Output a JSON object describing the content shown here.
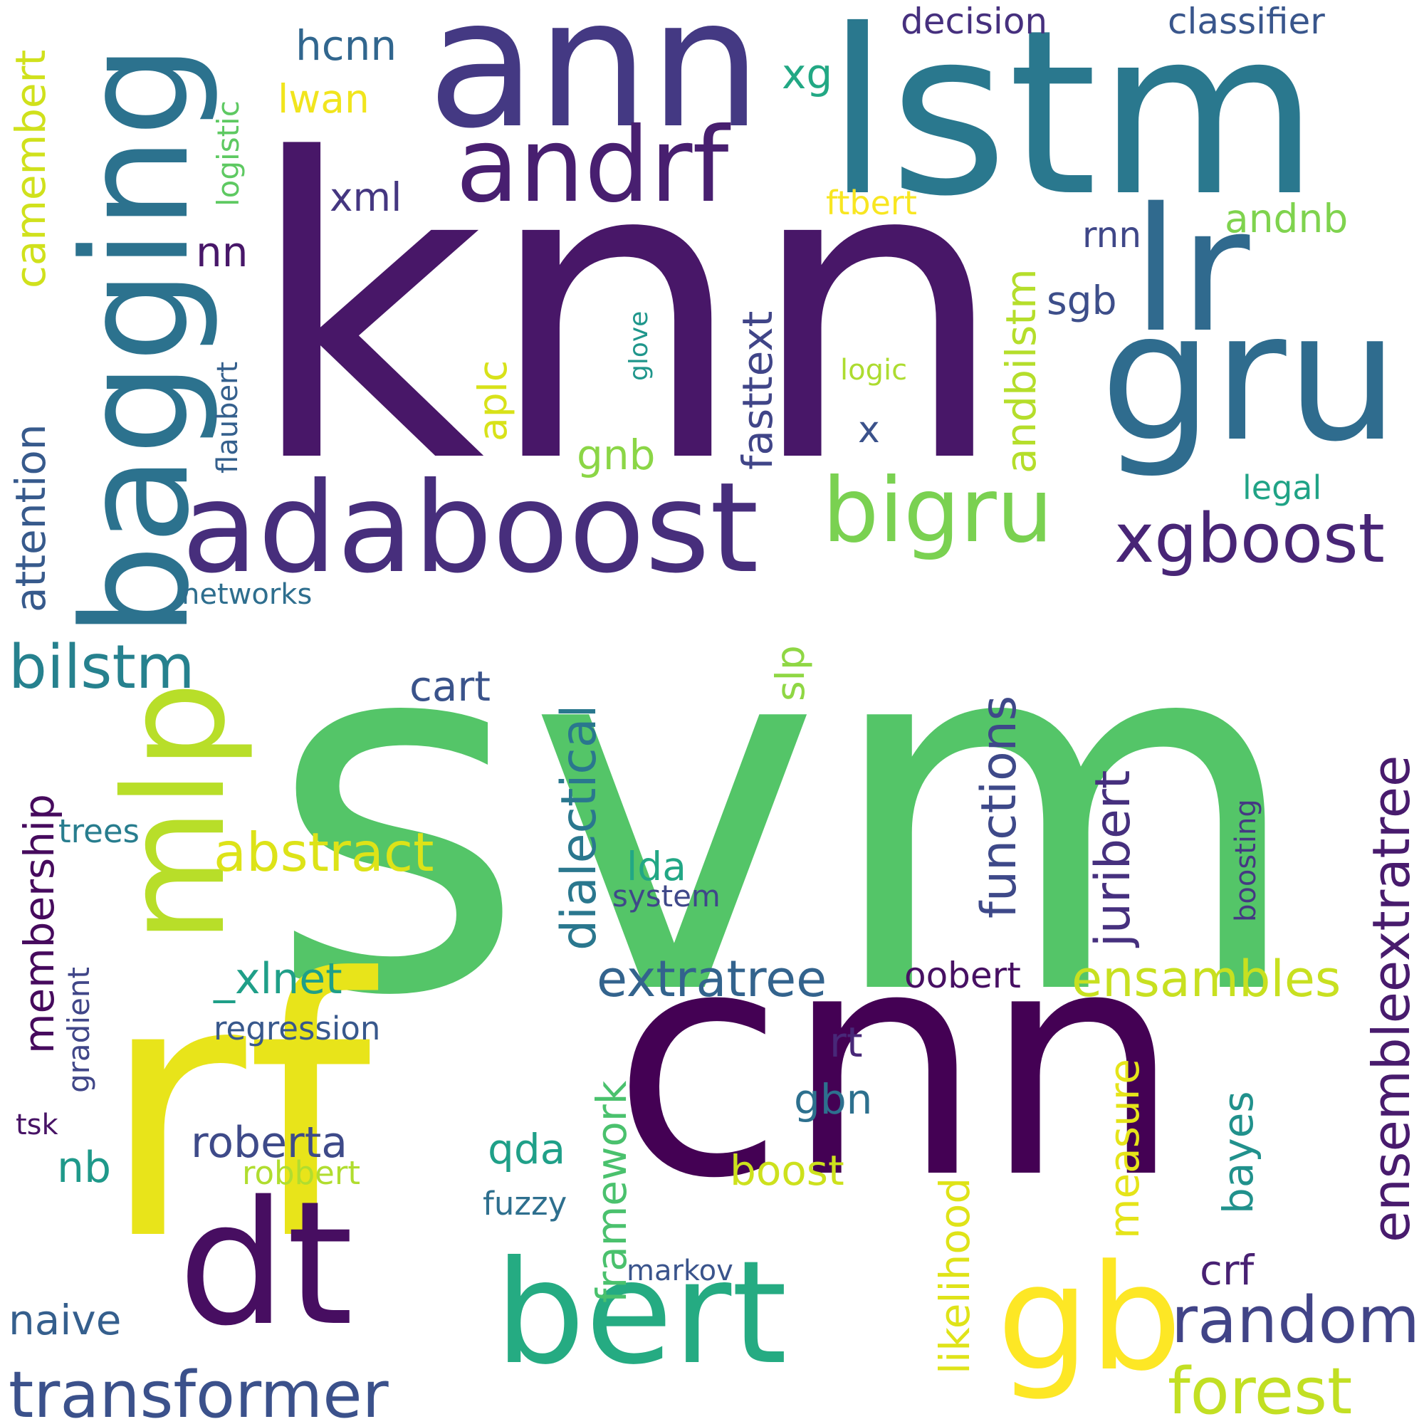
{
  "word_cloud": {
    "background": "#ffffff",
    "palette": "viridis",
    "words": [
      {
        "text": "svm",
        "color": "#54c568"
      },
      {
        "text": "knn",
        "color": "#481768"
      },
      {
        "text": "lstm",
        "color": "#2a788e"
      },
      {
        "text": "rf",
        "color": "#e8e41a"
      },
      {
        "text": "cnn",
        "color": "#440154"
      },
      {
        "text": "ann",
        "color": "#443983"
      },
      {
        "text": "bagging",
        "color": "#2c728e"
      },
      {
        "text": "lr",
        "color": "#306a8e"
      },
      {
        "text": "gru",
        "color": "#2f6c8e"
      },
      {
        "text": "mlp",
        "color": "#b8de29"
      },
      {
        "text": "adaboost",
        "color": "#472e7c"
      },
      {
        "text": "andrf",
        "color": "#481f70"
      },
      {
        "text": "dt",
        "color": "#470e61"
      },
      {
        "text": "bert",
        "color": "#25ab82"
      },
      {
        "text": "gb",
        "color": "#fde725"
      },
      {
        "text": "bigru",
        "color": "#7ad151"
      },
      {
        "text": "xgboost",
        "color": "#482576"
      },
      {
        "text": "transformer",
        "color": "#3b518b"
      },
      {
        "text": "forest",
        "color": "#c2df23"
      },
      {
        "text": "random",
        "color": "#414487"
      },
      {
        "text": "bilstm",
        "color": "#26818e"
      },
      {
        "text": "abstract",
        "color": "#dde318"
      },
      {
        "text": "ensambles",
        "color": "#c8e020"
      },
      {
        "text": "extratree",
        "color": "#33638d"
      },
      {
        "text": "ensembleextratree",
        "color": "#481b6d"
      },
      {
        "text": "dialectical",
        "color": "#2a778e"
      },
      {
        "text": "functions",
        "color": "#3e4989"
      },
      {
        "text": "juribert",
        "color": "#46307e"
      },
      {
        "text": "camembert",
        "color": "#d0e11c"
      },
      {
        "text": "attention",
        "color": "#375a8c"
      },
      {
        "text": "membership",
        "color": "#460a5d"
      },
      {
        "text": "fasttext",
        "color": "#404588"
      },
      {
        "text": "andbilstm",
        "color": "#b5de2b"
      },
      {
        "text": "naive",
        "color": "#355f8d"
      },
      {
        "text": "roberta",
        "color": "#3e4a89"
      },
      {
        "text": "_xlnet",
        "color": "#1f9f88"
      },
      {
        "text": "cart",
        "color": "#3a538b"
      },
      {
        "text": "boost",
        "color": "#cde11d"
      },
      {
        "text": "likelihood",
        "color": "#dfe318"
      },
      {
        "text": "framework",
        "color": "#4ac16d"
      },
      {
        "text": "measure",
        "color": "#e5e419"
      },
      {
        "text": "bayes",
        "color": "#21918c"
      },
      {
        "text": "crf",
        "color": "#482173"
      },
      {
        "text": "gbn",
        "color": "#2d708e"
      },
      {
        "text": "rt",
        "color": "#482878"
      },
      {
        "text": "qda",
        "color": "#1fa088"
      },
      {
        "text": "lda",
        "color": "#22a785"
      },
      {
        "text": "slp",
        "color": "#8fd744"
      },
      {
        "text": "gnb",
        "color": "#8bd646"
      },
      {
        "text": "aplc",
        "color": "#d8e219"
      },
      {
        "text": "andnb",
        "color": "#7fd34e"
      },
      {
        "text": "sgb",
        "color": "#3d4e8a"
      },
      {
        "text": "rnn",
        "color": "#3f4788"
      },
      {
        "text": "xml",
        "color": "#453781"
      },
      {
        "text": "nn",
        "color": "#481769"
      },
      {
        "text": "hcnn",
        "color": "#31668e"
      },
      {
        "text": "lwan",
        "color": "#f1e51d"
      },
      {
        "text": "xg",
        "color": "#22a884"
      },
      {
        "text": "decision",
        "color": "#46307e"
      },
      {
        "text": "classifier",
        "color": "#39568c"
      },
      {
        "text": "ftbert",
        "color": "#f8e621"
      },
      {
        "text": "logistic",
        "color": "#5ec962"
      },
      {
        "text": "flaubert",
        "color": "#35608d"
      },
      {
        "text": "glove",
        "color": "#1f968b"
      },
      {
        "text": "logic",
        "color": "#addc30"
      },
      {
        "text": "legal",
        "color": "#20a386"
      },
      {
        "text": "x",
        "color": "#3b528b"
      },
      {
        "text": "networks",
        "color": "#2e6e8e"
      },
      {
        "text": "trees",
        "color": "#287d8e"
      },
      {
        "text": "system",
        "color": "#3f4889"
      },
      {
        "text": "gradient",
        "color": "#404688"
      },
      {
        "text": "regression",
        "color": "#38588c"
      },
      {
        "text": "tsk",
        "color": "#471365"
      },
      {
        "text": "nb",
        "color": "#1f998a"
      },
      {
        "text": "robbert",
        "color": "#b0dd2f"
      },
      {
        "text": "fuzzy",
        "color": "#2e6f8e"
      },
      {
        "text": "markov",
        "color": "#3a548c"
      },
      {
        "text": "oobert",
        "color": "#471063"
      },
      {
        "text": "boosting",
        "color": "#453882"
      }
    ]
  }
}
